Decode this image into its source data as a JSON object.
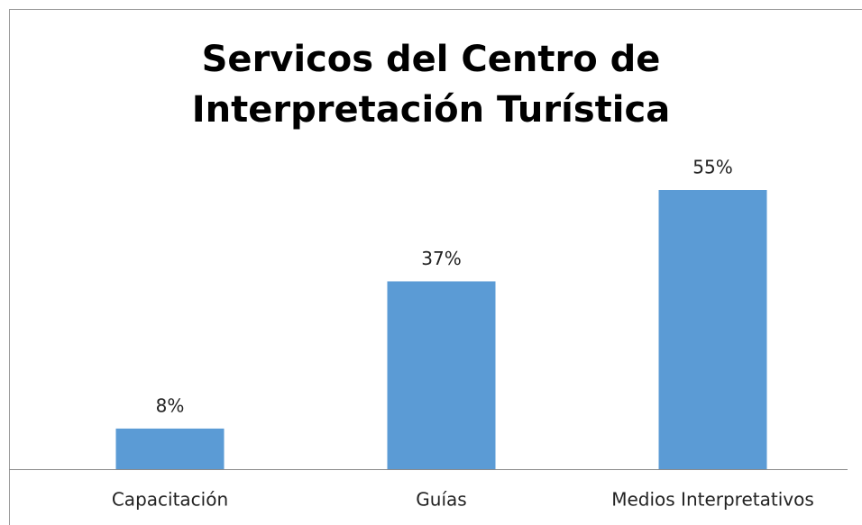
{
  "chart_data": {
    "type": "bar",
    "title": "Servicos del Centro de Interpretación Turística",
    "categories": [
      "Capacitación",
      "Guías",
      "Medios Interpretativos"
    ],
    "values": [
      8,
      37,
      55
    ],
    "value_labels": [
      "8%",
      "37%",
      "55%"
    ],
    "color": "#5b9bd5"
  }
}
